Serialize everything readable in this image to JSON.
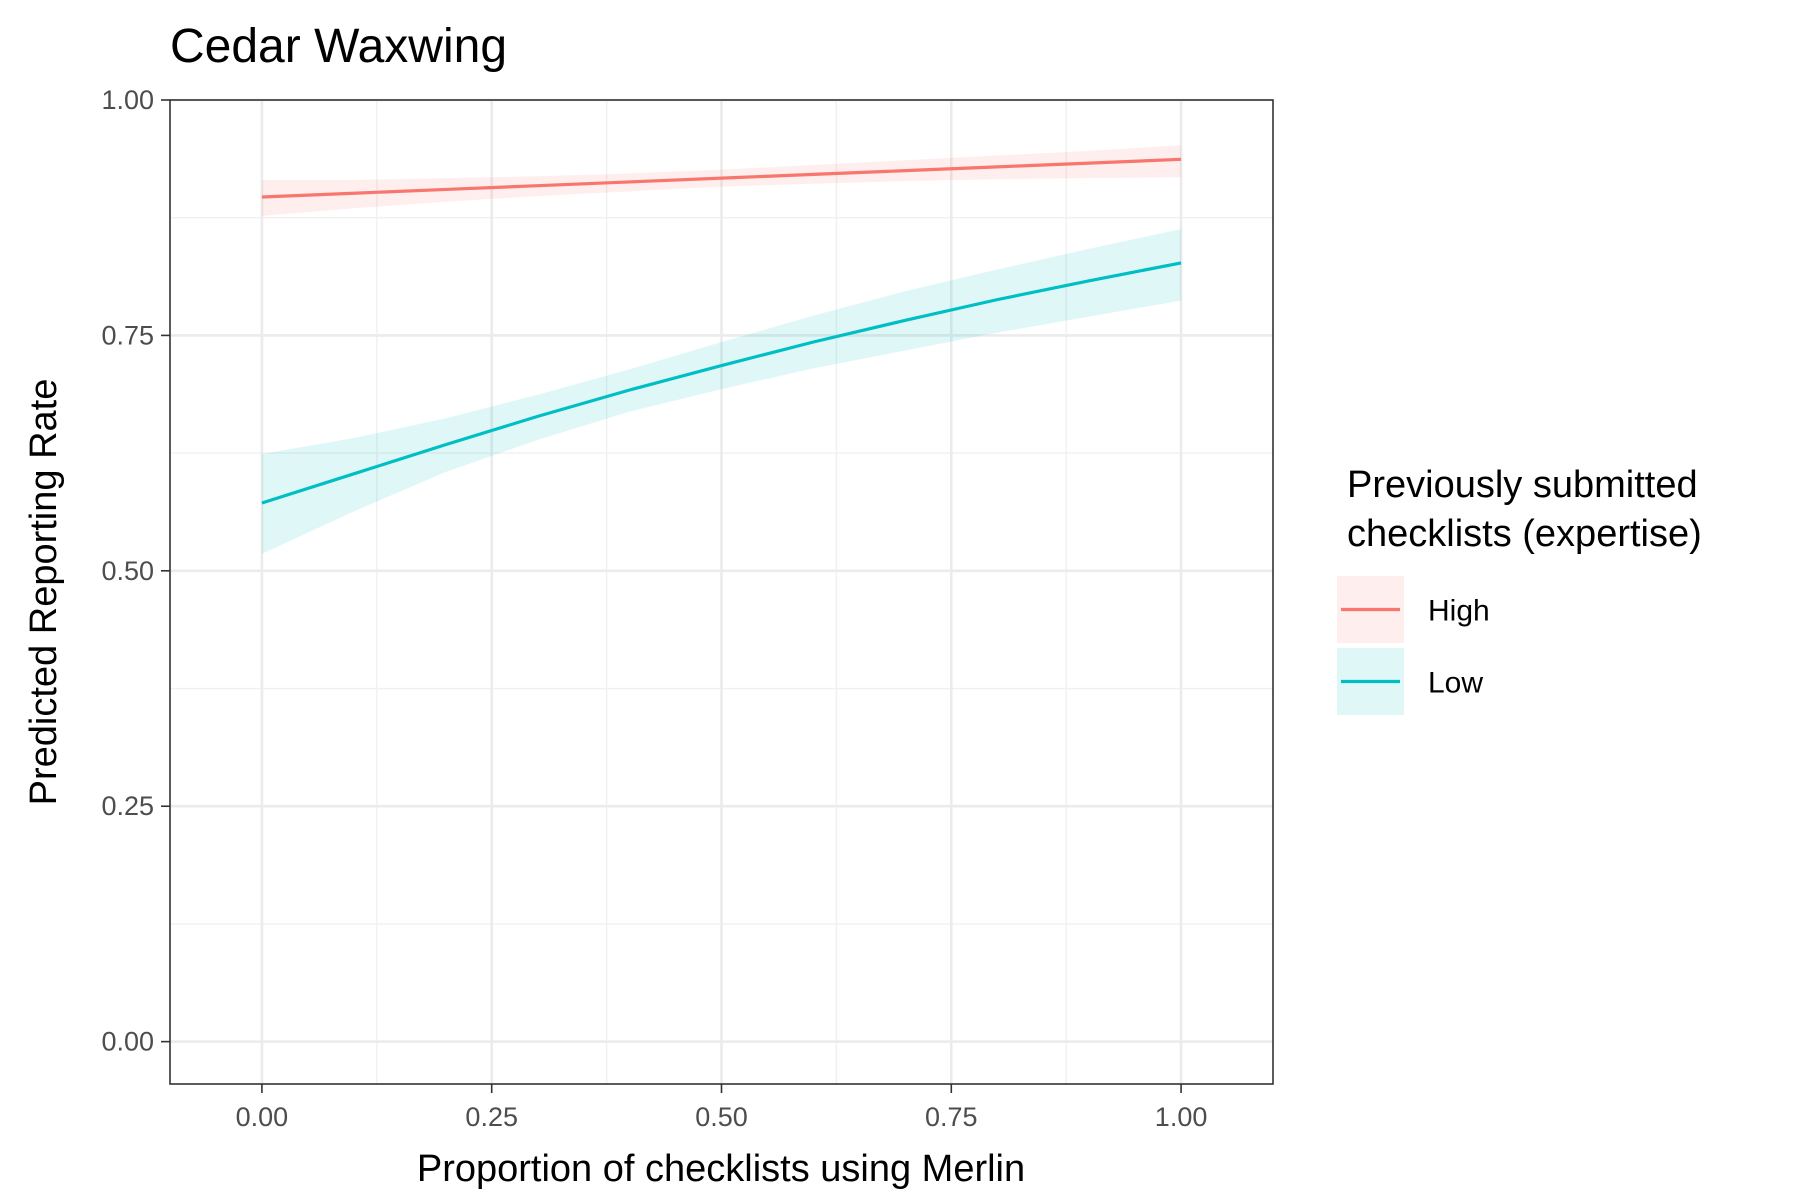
{
  "chart_data": {
    "type": "line",
    "title": "Cedar Waxwing",
    "xlabel": "Proportion of checklists using Merlin",
    "ylabel": "Predicted Reporting Rate",
    "xlim": [
      -0.1,
      1.1
    ],
    "ylim": [
      -0.045,
      1.0
    ],
    "x_ticks": [
      "0.00",
      "0.25",
      "0.50",
      "0.75",
      "1.00"
    ],
    "y_ticks": [
      "0.00",
      "0.25",
      "0.50",
      "0.75",
      "1.00"
    ],
    "grid": true,
    "legend": {
      "title_lines": [
        "Previously submitted",
        "checklists (expertise)"
      ],
      "position": "right"
    },
    "x": [
      0.0,
      0.1,
      0.2,
      0.3,
      0.4,
      0.5,
      0.6,
      0.7,
      0.8,
      0.9,
      1.0
    ],
    "series": [
      {
        "name": "High",
        "color": "#F8766D",
        "values": [
          0.897,
          0.901,
          0.905,
          0.909,
          0.913,
          0.917,
          0.921,
          0.925,
          0.929,
          0.933,
          0.937
        ],
        "lower": [
          0.877,
          0.885,
          0.892,
          0.898,
          0.903,
          0.908,
          0.911,
          0.914,
          0.916,
          0.917,
          0.918
        ],
        "upper": [
          0.915,
          0.915,
          0.917,
          0.919,
          0.922,
          0.926,
          0.931,
          0.936,
          0.941,
          0.946,
          0.952
        ]
      },
      {
        "name": "Low",
        "color": "#00BFC4",
        "values": [
          0.572,
          0.603,
          0.634,
          0.664,
          0.692,
          0.718,
          0.743,
          0.766,
          0.788,
          0.808,
          0.827
        ],
        "lower": [
          0.518,
          0.563,
          0.605,
          0.639,
          0.669,
          0.693,
          0.715,
          0.734,
          0.753,
          0.77,
          0.787
        ],
        "upper": [
          0.624,
          0.641,
          0.662,
          0.687,
          0.714,
          0.743,
          0.771,
          0.797,
          0.82,
          0.842,
          0.863
        ]
      }
    ]
  }
}
